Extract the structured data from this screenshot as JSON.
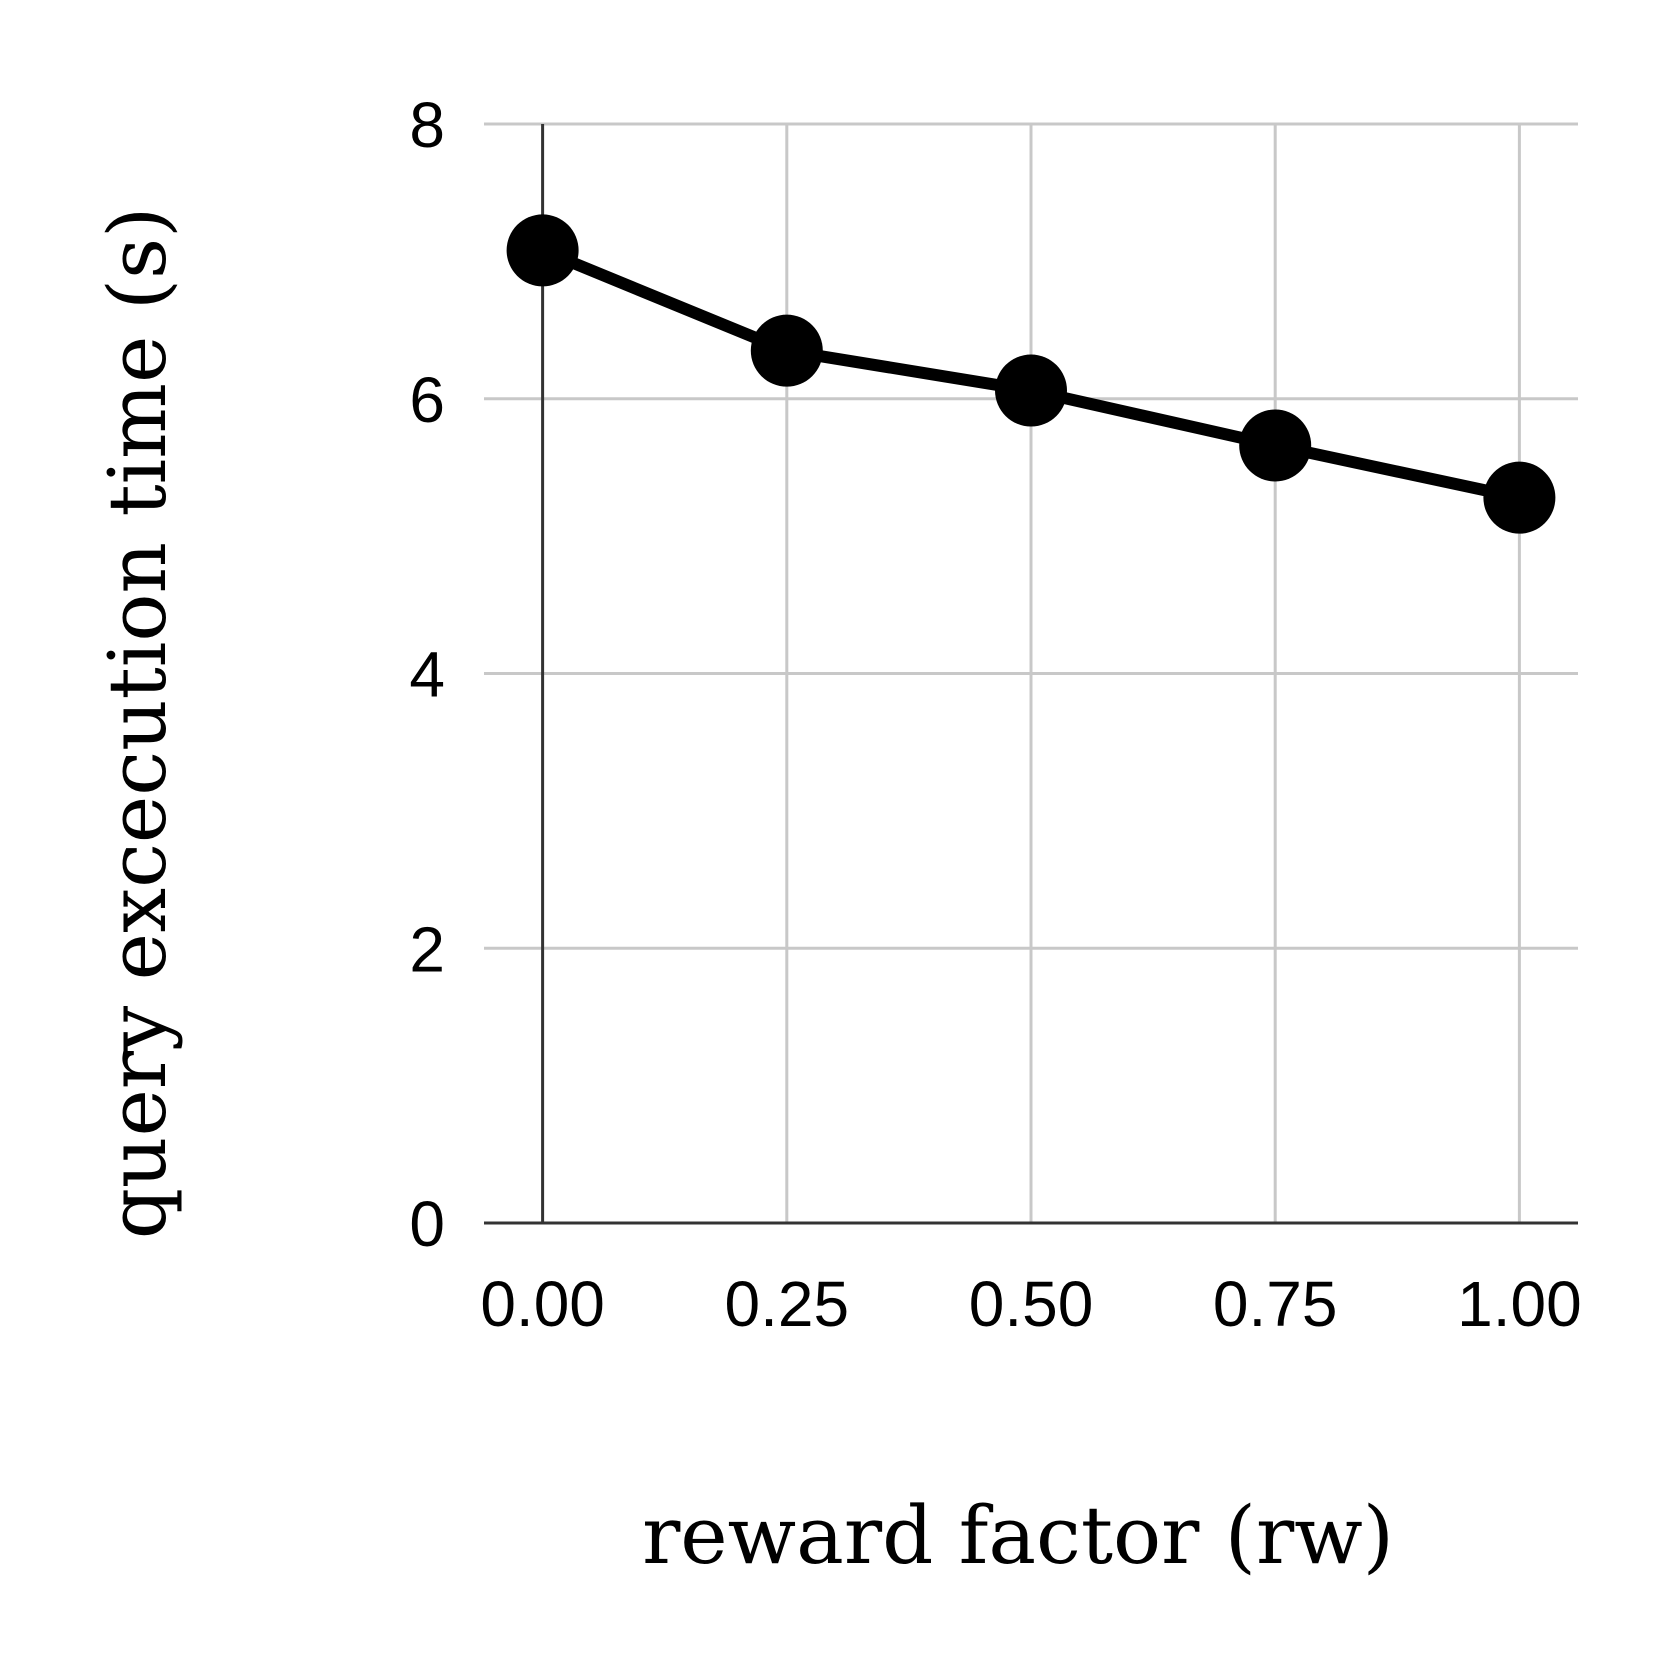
{
  "chart_data": {
    "type": "line",
    "title": "",
    "xlabel": "reward factor (rw)",
    "ylabel": "query excecution time (s)",
    "x": [
      0.0,
      0.25,
      0.5,
      0.75,
      1.0
    ],
    "x_tick_labels": [
      "0.00",
      "0.25",
      "0.50",
      "0.75",
      "1.00"
    ],
    "y_ticks": [
      0,
      2,
      4,
      6,
      8
    ],
    "y_tick_labels": [
      "0",
      "2",
      "4",
      "6",
      "8"
    ],
    "xlim": [
      -0.06,
      1.06
    ],
    "ylim": [
      0,
      8
    ],
    "grid": true,
    "legend": "none",
    "series": [
      {
        "values": [
          7.08,
          6.35,
          6.06,
          5.66,
          5.28
        ],
        "color": "#000000",
        "marker": "circle"
      }
    ]
  }
}
